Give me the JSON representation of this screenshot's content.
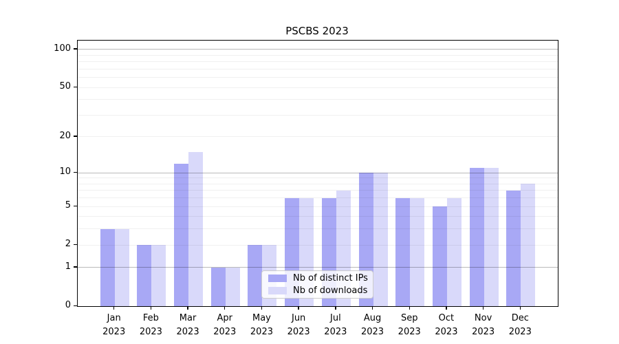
{
  "title": "PSCBS 2023",
  "colors": {
    "distinct_ips_bar": "#a8a8f5",
    "downloads_bar": "#d9d9fa",
    "major_gridline": "#b9b9b9",
    "minor_gridline": "#efefef",
    "axis_line": "#000000",
    "legend_border": "#cccccc"
  },
  "chart_data": {
    "type": "bar",
    "title": "PSCBS 2023",
    "categories": [
      "Jan 2023",
      "Feb 2023",
      "Mar 2023",
      "Apr 2023",
      "May 2023",
      "Jun 2023",
      "Jul 2023",
      "Aug 2023",
      "Sep 2023",
      "Oct 2023",
      "Nov 2023",
      "Dec 2023"
    ],
    "series": [
      {
        "name": "Nb of distinct IPs",
        "values": [
          3,
          2,
          12,
          1,
          2,
          6,
          6,
          10,
          6,
          5,
          11,
          7
        ]
      },
      {
        "name": "Nb of downloads",
        "values": [
          3,
          2,
          15,
          1,
          2,
          6,
          7,
          10,
          6,
          6,
          11,
          8
        ]
      }
    ],
    "xlabel": "",
    "ylabel": "",
    "yscale": "log10(1+x)",
    "ylim": [
      0,
      117
    ],
    "y_tick_values": [
      0,
      1,
      2,
      5,
      10,
      20,
      50,
      100
    ],
    "y_tick_labels": [
      "0",
      "1",
      "2",
      "5",
      "10",
      "20",
      "50",
      "100"
    ],
    "major_gridline_values": [
      1,
      10,
      100
    ],
    "minor_gridline_values": [
      2,
      3,
      4,
      5,
      6,
      7,
      8,
      9,
      20,
      30,
      40,
      50,
      60,
      70,
      80,
      90
    ],
    "grid": "on",
    "legend_position": "bottom-center-inside"
  }
}
